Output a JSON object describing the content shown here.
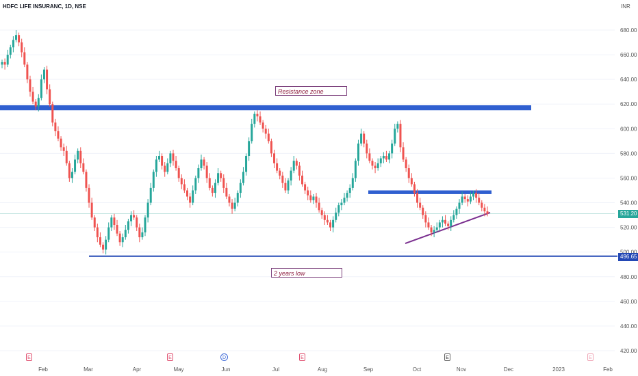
{
  "header": {
    "symbol": "HDFC LIFE INSURANC, 1D, NSE",
    "currency": "INR"
  },
  "annotations": {
    "resistance": "Resistance zone",
    "low": "2 years low"
  },
  "price_badges": {
    "last": "531.20",
    "low": "496.65"
  },
  "events": [
    "E",
    "E",
    "D",
    "E",
    "E",
    "E"
  ],
  "chart_data": {
    "type": "candlestick",
    "title": "",
    "y_ticks": [
      420,
      440,
      460,
      480,
      500,
      520,
      540,
      560,
      580,
      600,
      620,
      640,
      660,
      680
    ],
    "y_tick_labels": [
      "420.00",
      "440.00",
      "460.00",
      "480.00",
      "500.00",
      "520.00",
      "540.00",
      "560.00",
      "580.00",
      "600.00",
      "620.00",
      "640.00",
      "660.00",
      "680.00"
    ],
    "ylim": [
      415,
      690
    ],
    "x_ticks": [
      "Feb",
      "Mar",
      "Apr",
      "May",
      "Jun",
      "Jul",
      "Aug",
      "Sep",
      "Oct",
      "Nov",
      "Dec",
      "2023",
      "Feb"
    ],
    "last_price": 531.2,
    "two_year_low": 496.65,
    "resistance_zone": [
      615,
      619
    ],
    "short_resistance": [
      547,
      550
    ],
    "trendline": {
      "from": 507,
      "to": 532
    },
    "closes": [
      654,
      652,
      660,
      666,
      672,
      676,
      670,
      662,
      652,
      640,
      630,
      622,
      618,
      625,
      640,
      648,
      632,
      620,
      605,
      598,
      592,
      585,
      582,
      572,
      560,
      565,
      575,
      582,
      572,
      565,
      552,
      540,
      528,
      520,
      512,
      506,
      502,
      510,
      520,
      528,
      522,
      515,
      508,
      512,
      518,
      525,
      530,
      528,
      520,
      512,
      516,
      528,
      540,
      552,
      565,
      575,
      578,
      570,
      565,
      572,
      580,
      574,
      568,
      560,
      555,
      550,
      545,
      540,
      550,
      560,
      568,
      575,
      570,
      560,
      552,
      548,
      556,
      564,
      560,
      552,
      545,
      540,
      535,
      540,
      548,
      556,
      565,
      578,
      590,
      604,
      612,
      610,
      605,
      600,
      596,
      590,
      580,
      572,
      566,
      562,
      556,
      550,
      558,
      566,
      574,
      570,
      562,
      555,
      550,
      546,
      542,
      545,
      540,
      534,
      530,
      526,
      524,
      520,
      526,
      532,
      538,
      540,
      544,
      548,
      552,
      560,
      574,
      588,
      596,
      588,
      580,
      574,
      570,
      568,
      572,
      576,
      578,
      575,
      580,
      588,
      600,
      604,
      585,
      575,
      568,
      560,
      555,
      548,
      540,
      536,
      530,
      524,
      520,
      516,
      518,
      520,
      524,
      526,
      523,
      521,
      526,
      530,
      535,
      540,
      545,
      543,
      541,
      545,
      548,
      544,
      540,
      536,
      533,
      531
    ]
  }
}
